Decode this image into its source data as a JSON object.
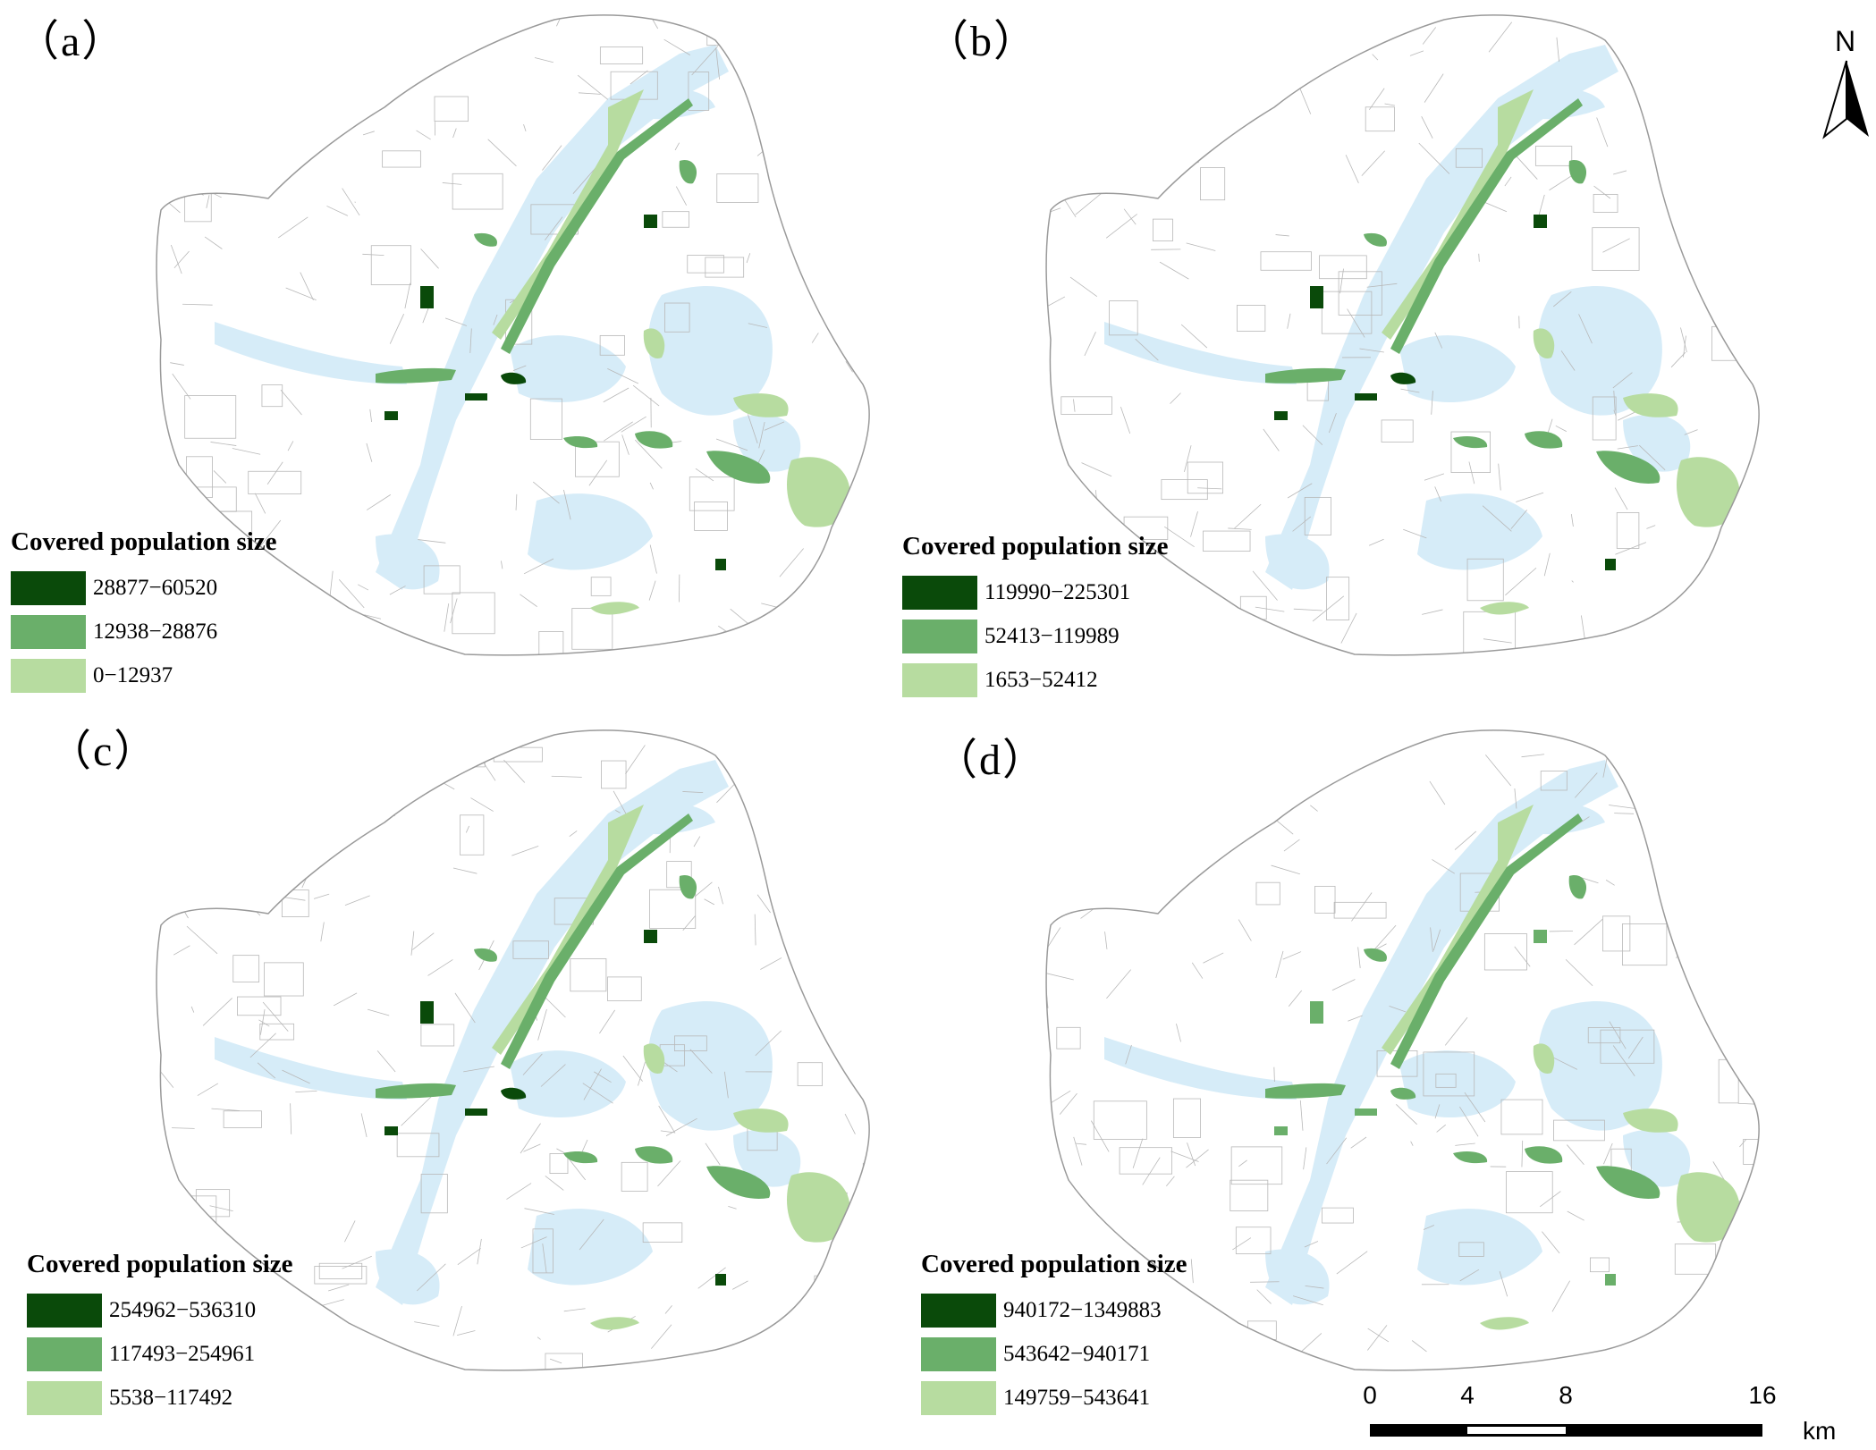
{
  "panels": [
    {
      "label": "（a）",
      "legend": {
        "title": "Covered population size",
        "classes": [
          {
            "range": "28877−60520",
            "color": "#0a4a0a"
          },
          {
            "range": "12938−28876",
            "color": "#6aaf6a"
          },
          {
            "range": "0−12937",
            "color": "#b7dca0"
          }
        ]
      }
    },
    {
      "label": "（b）",
      "legend": {
        "title": "Covered population size",
        "classes": [
          {
            "range": "119990−225301",
            "color": "#0a4a0a"
          },
          {
            "range": "52413−119989",
            "color": "#6aaf6a"
          },
          {
            "range": "1653−52412",
            "color": "#b7dca0"
          }
        ]
      }
    },
    {
      "label": "（c）",
      "legend": {
        "title": "Covered population size",
        "classes": [
          {
            "range": "254962−536310",
            "color": "#0a4a0a"
          },
          {
            "range": "117493−254961",
            "color": "#6aaf6a"
          },
          {
            "range": "5538−117492",
            "color": "#b7dca0"
          }
        ]
      }
    },
    {
      "label": "（d）",
      "legend": {
        "title": "Covered population size",
        "classes": [
          {
            "range": "940172−1349883",
            "color": "#0a4a0a"
          },
          {
            "range": "543642−940171",
            "color": "#6aaf6a"
          },
          {
            "range": "149759−543641",
            "color": "#b7dca0"
          }
        ]
      }
    }
  ],
  "north_arrow": {
    "letter": "N"
  },
  "scale_bar": {
    "ticks": [
      "0",
      "4",
      "8",
      "16"
    ],
    "unit": "km"
  },
  "colors": {
    "water": "#d6ecf8",
    "boundary": "#9a9a9a",
    "streets": "#b8b8b8"
  }
}
